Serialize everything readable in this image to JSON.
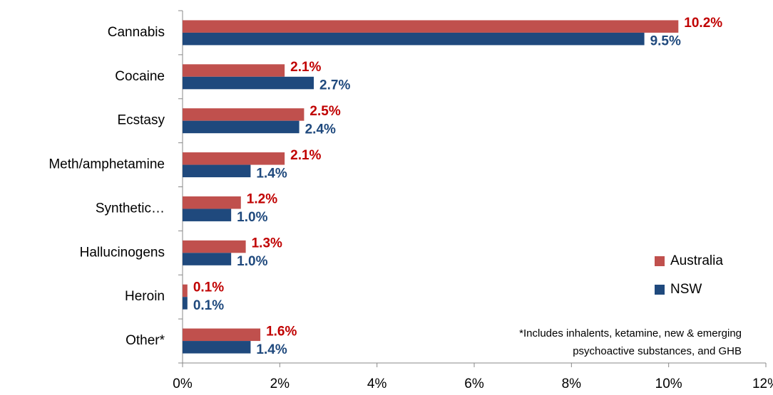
{
  "chart_data": {
    "type": "bar",
    "orientation": "horizontal",
    "categories": [
      "Cannabis",
      "Cocaine",
      "Ecstasy",
      "Meth/amphetamine",
      "Synthetic…",
      "Hallucinogens",
      "Heroin",
      "Other*"
    ],
    "series": [
      {
        "name": "Australia",
        "color": "#c0504d",
        "label_color": "#c00000",
        "values": [
          10.2,
          2.1,
          2.5,
          2.1,
          1.2,
          1.3,
          0.1,
          1.6
        ],
        "value_labels": [
          "10.2%",
          "2.1%",
          "2.5%",
          "2.1%",
          "1.2%",
          "1.3%",
          "0.1%",
          "1.6%"
        ]
      },
      {
        "name": "NSW",
        "color": "#1f497d",
        "label_color": "#1f497d",
        "values": [
          9.5,
          2.7,
          2.4,
          1.4,
          1.0,
          1.0,
          0.1,
          1.4
        ],
        "value_labels": [
          "9.5%",
          "2.7%",
          "2.4%",
          "1.4%",
          "1.0%",
          "1.0%",
          "0.1%",
          "1.4%"
        ]
      }
    ],
    "xlim": [
      0,
      12
    ],
    "xticks": [
      {
        "value": 0,
        "label": "0%"
      },
      {
        "value": 2,
        "label": "2%"
      },
      {
        "value": 4,
        "label": "4%"
      },
      {
        "value": 6,
        "label": "6%"
      },
      {
        "value": 8,
        "label": "8%"
      },
      {
        "value": 10,
        "label": "10%"
      },
      {
        "value": 12,
        "label": "12%"
      }
    ],
    "annotations": [
      "*Includes inhalents, ketamine, new & emerging",
      "psychoactive substances, and GHB"
    ],
    "legend": "right"
  }
}
